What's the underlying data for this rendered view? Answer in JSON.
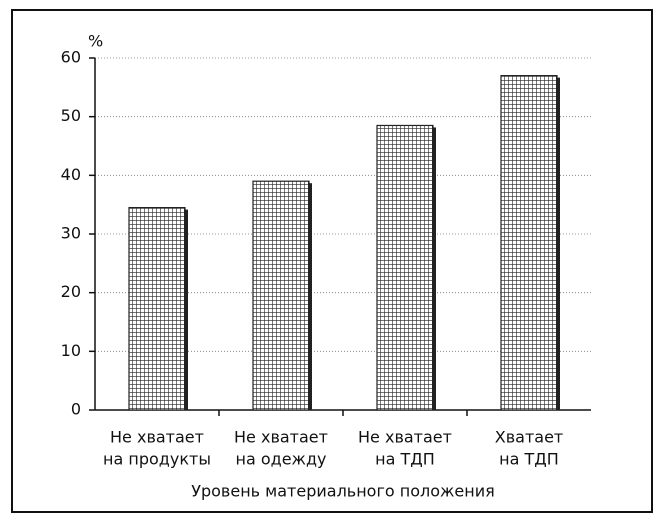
{
  "chart_data": {
    "type": "bar",
    "y_label": "%",
    "x_label": "Уровень материального положения",
    "categories": [
      [
        "Не хватает",
        "на продукты"
      ],
      [
        "Не хватает",
        "на одежду"
      ],
      [
        "Не хватает",
        "на ТДП"
      ],
      [
        "Хватает",
        "на ТДП"
      ]
    ],
    "values": [
      34.5,
      39,
      48.5,
      57
    ],
    "color": "#222222",
    "ylim": [
      0,
      60
    ],
    "yticks": [
      0,
      10,
      20,
      30,
      40,
      50,
      60
    ],
    "grid": true
  }
}
